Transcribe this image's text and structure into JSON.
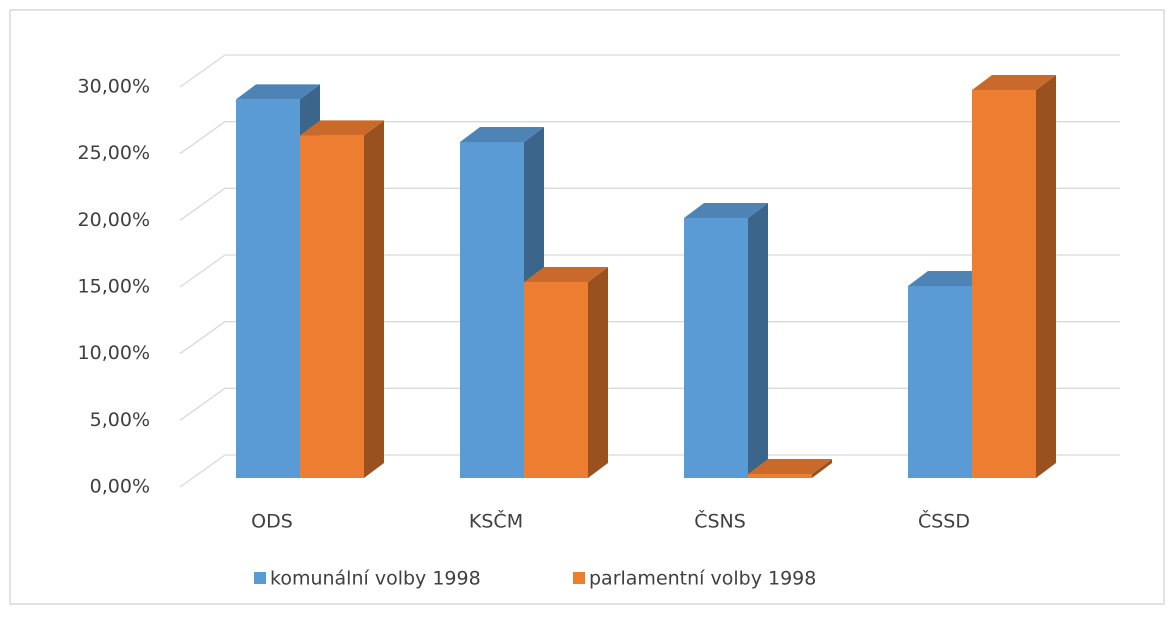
{
  "chart_data": {
    "type": "bar3d",
    "categories": [
      "ODS",
      "KSČM",
      "ČSNS",
      "ČSSD"
    ],
    "series": [
      {
        "name": "komunální volby 1998",
        "color": "#5b9bd5",
        "values": [
          28.4,
          25.2,
          19.5,
          14.4
        ]
      },
      {
        "name": "parlamentní volby 1998",
        "color": "#ed7d31",
        "values": [
          25.7,
          14.7,
          0.3,
          29.1
        ]
      }
    ],
    "ylim": [
      0,
      30
    ],
    "yticks": [
      {
        "value": 0,
        "label": "0,00%"
      },
      {
        "value": 5,
        "label": "5,00%"
      },
      {
        "value": 10,
        "label": "10,00%"
      },
      {
        "value": 15,
        "label": "15,00%"
      },
      {
        "value": 20,
        "label": "20,00%"
      },
      {
        "value": 25,
        "label": "25,00%"
      },
      {
        "value": 30,
        "label": "30,00%"
      }
    ],
    "grid": true,
    "legend": "bottom"
  }
}
